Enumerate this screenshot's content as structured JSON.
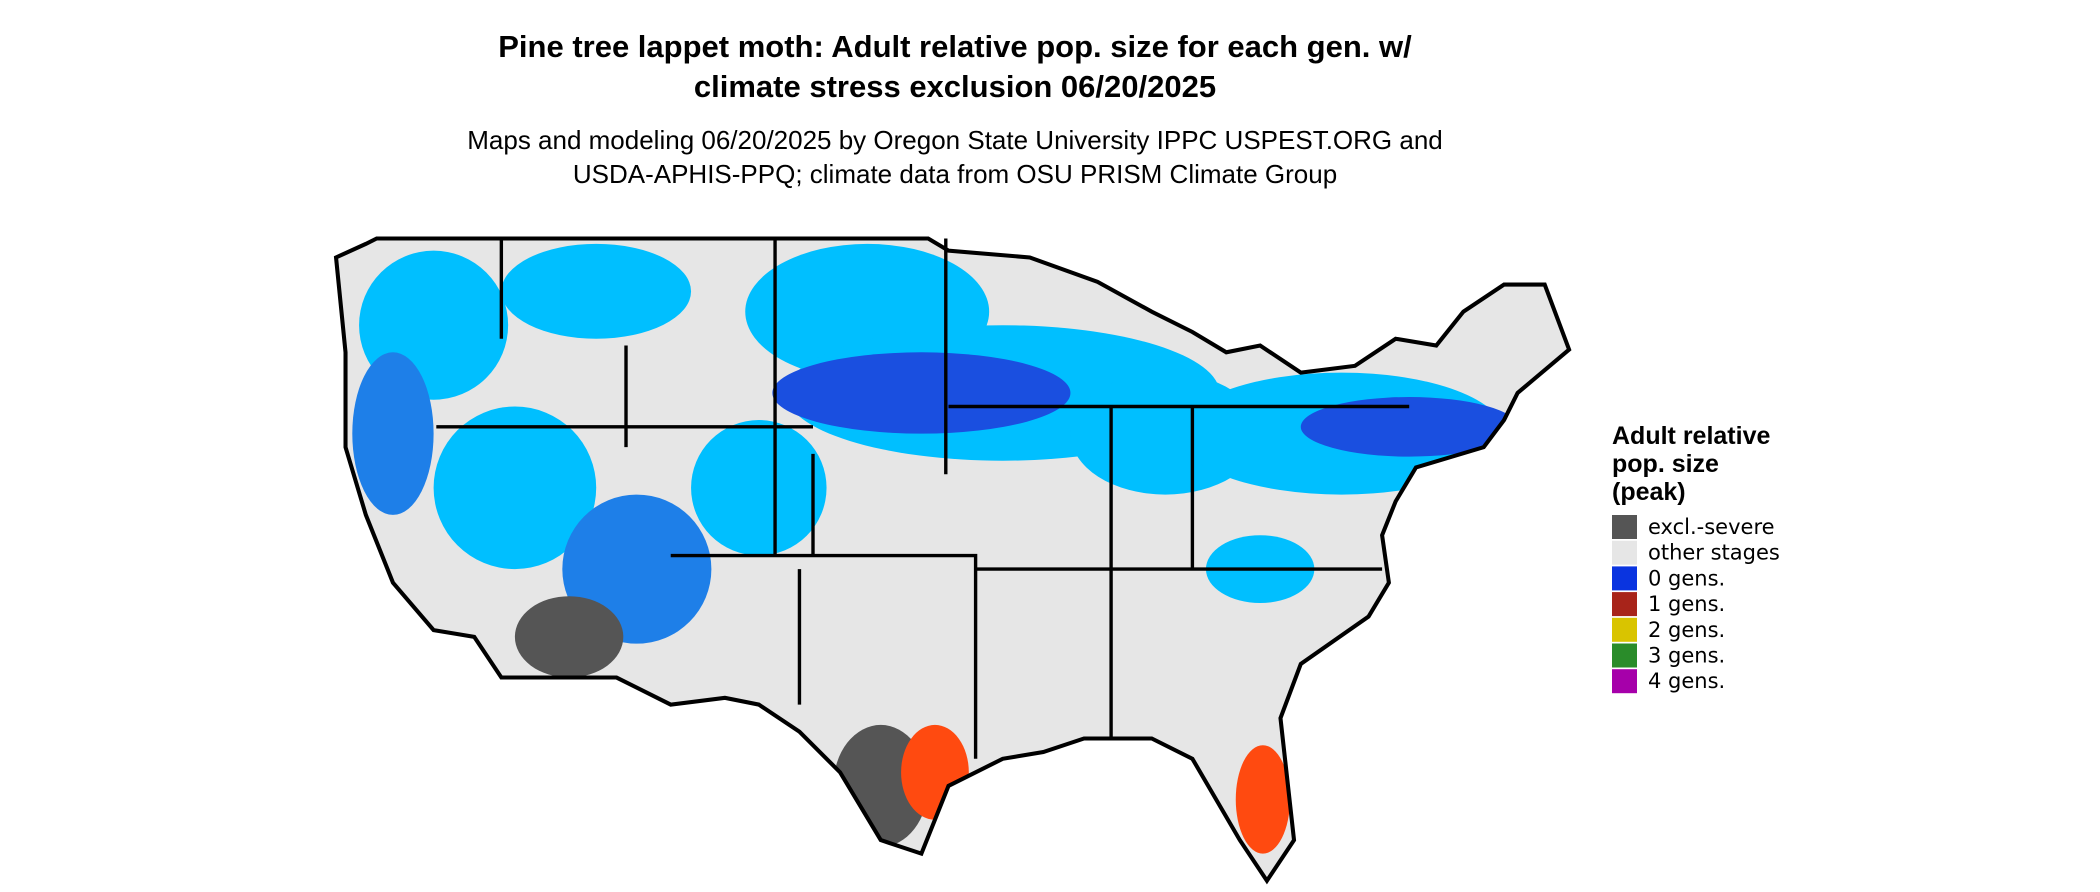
{
  "header": {
    "title": [
      "Pine tree lappet moth: Adult relative pop. size for each gen. w/",
      "climate stress exclusion 06/20/2025"
    ],
    "subtitle": [
      "Maps and modeling 06/20/2025 by Oregon State University IPPC USPEST.ORG and",
      "USDA-APHIS-PPQ; climate data from OSU PRISM Climate Group"
    ]
  },
  "legend": {
    "title": [
      "Adult relative",
      "pop. size",
      "(peak)"
    ],
    "items": [
      {
        "label": "excl.-severe",
        "color": "#555555"
      },
      {
        "label": "other stages",
        "color": "#e6e6e6"
      },
      {
        "label": "0 gens.",
        "color": "#0a34e0"
      },
      {
        "label": "1 gens.",
        "color": "#a8241a"
      },
      {
        "label": "2 gens.",
        "color": "#d9c400"
      },
      {
        "label": "3 gens.",
        "color": "#2a8c2a"
      },
      {
        "label": "4 gens.",
        "color": "#a600aa"
      }
    ]
  }
}
